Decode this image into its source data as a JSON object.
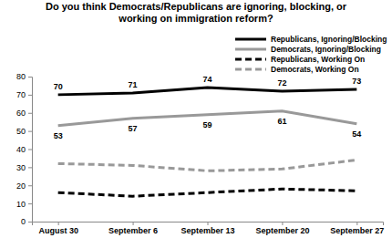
{
  "chart_data": {
    "type": "line",
    "title": "Do you think Democrats/Republicans are ignoring, blocking, or working on immigration reform?",
    "categories": [
      "August 30",
      "September 6",
      "September 13",
      "September 20",
      "September 27"
    ],
    "series": [
      {
        "name": "Republicans, Ignoring/Blocking",
        "color": "#000000",
        "line_style": "solid",
        "data_labels": true,
        "values": [
          70,
          71,
          74,
          72,
          73
        ]
      },
      {
        "name": "Democrats, Ignoring/Blocking",
        "color": "#999999",
        "line_style": "solid",
        "data_labels": true,
        "values": [
          53,
          57,
          59,
          61,
          54
        ]
      },
      {
        "name": "Republicans, Working On",
        "color": "#000000",
        "line_style": "dashed",
        "values": [
          16,
          14,
          16,
          18,
          17
        ]
      },
      {
        "name": "Democrats, Working On",
        "color": "#999999",
        "line_style": "dashed",
        "values": [
          32,
          31,
          28,
          29,
          34
        ]
      }
    ],
    "ylim": [
      0,
      80
    ],
    "yticks": [
      0,
      10,
      20,
      30,
      40,
      50,
      60,
      70,
      80
    ],
    "grid": false,
    "legend": "top-right"
  }
}
